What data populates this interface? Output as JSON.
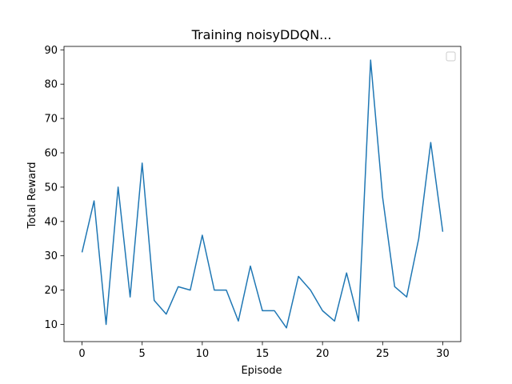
{
  "chart_data": {
    "type": "line",
    "title": "Training noisyDDQN...",
    "xlabel": "Episode",
    "ylabel": "Total Reward",
    "xlim": [
      -1.5,
      31.5
    ],
    "ylim": [
      5,
      91
    ],
    "xticks": [
      0,
      5,
      10,
      15,
      20,
      25,
      30
    ],
    "yticks": [
      10,
      20,
      30,
      40,
      50,
      60,
      70,
      80,
      90
    ],
    "grid": false,
    "legend": "top-right",
    "legend_empty": true,
    "series": [
      {
        "color": "#1f77b4",
        "x": [
          0,
          1,
          2,
          3,
          4,
          5,
          6,
          7,
          8,
          9,
          10,
          11,
          12,
          13,
          14,
          15,
          16,
          17,
          18,
          19,
          20,
          21,
          22,
          23,
          24,
          25,
          26,
          27,
          28,
          29,
          30
        ],
        "values": [
          31,
          46,
          10,
          50,
          18,
          57,
          17,
          13,
          21,
          20,
          36,
          20,
          20,
          11,
          27,
          14,
          14,
          9,
          24,
          20,
          14,
          11,
          25,
          11,
          87,
          47,
          21,
          18,
          35,
          63,
          37
        ]
      }
    ]
  }
}
